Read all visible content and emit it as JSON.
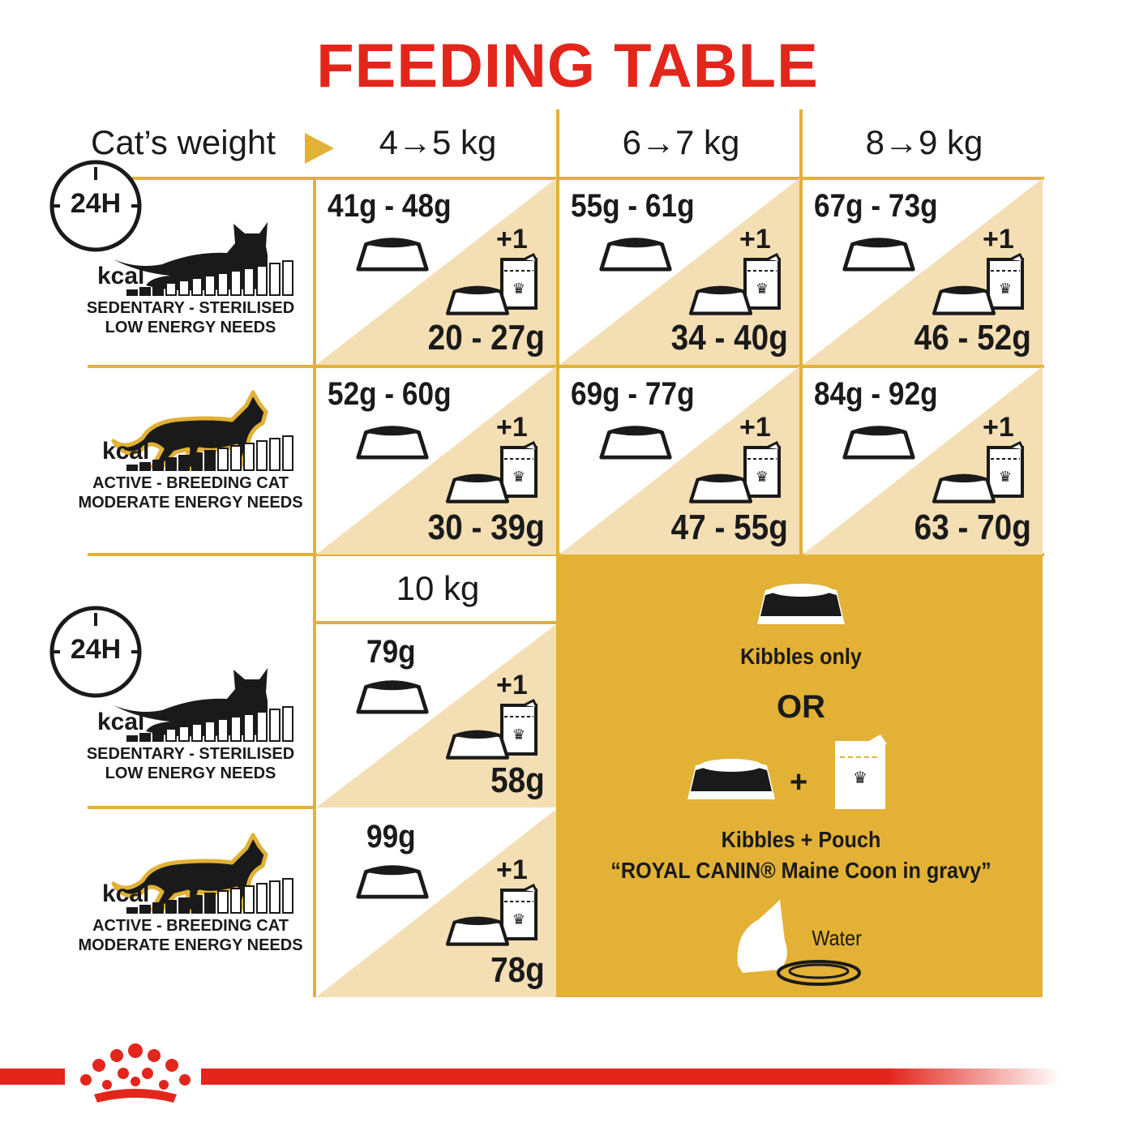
{
  "title": "FEEDING TABLE",
  "header": {
    "label": "Cat’s weight",
    "arrow_icon": "triangle-right-icon",
    "weights": [
      "4→5 kg",
      "6→7 kg",
      "8→9 kg"
    ],
    "weight_10": "10 kg"
  },
  "profiles": {
    "sedentary": {
      "clock": "24H",
      "kcal": "kcal",
      "line1": "SEDENTARY - STERILISED",
      "line2": "LOW ENERGY NEEDS",
      "kcal_level_fraction": 0.25
    },
    "active": {
      "kcal": "kcal",
      "line1": "ACTIVE - BREEDING CAT",
      "line2": "MODERATE ENERGY NEEDS",
      "kcal_level_fraction": 0.55
    }
  },
  "rows": [
    {
      "profile": "sedentary",
      "cells": [
        {
          "kibbles": "41g - 48g",
          "plus": "+1",
          "mixed": "20 - 27g"
        },
        {
          "kibbles": "55g - 61g",
          "plus": "+1",
          "mixed": "34 - 40g"
        },
        {
          "kibbles": "67g - 73g",
          "plus": "+1",
          "mixed": "46 - 52g"
        }
      ]
    },
    {
      "profile": "active",
      "cells": [
        {
          "kibbles": "52g - 60g",
          "plus": "+1",
          "mixed": "30 - 39g"
        },
        {
          "kibbles": "69g - 77g",
          "plus": "+1",
          "mixed": "47 - 55g"
        },
        {
          "kibbles": "84g - 92g",
          "plus": "+1",
          "mixed": "63 - 70g"
        }
      ]
    },
    {
      "profile": "sedentary",
      "cells": [
        {
          "kibbles": "79g",
          "plus": "+1",
          "mixed": "58g"
        }
      ]
    },
    {
      "profile": "active",
      "cells": [
        {
          "kibbles": "99g",
          "plus": "+1",
          "mixed": "78g"
        }
      ]
    }
  ],
  "legend": {
    "kibbles_only": "Kibbles only",
    "or": "OR",
    "plus_sign": "+",
    "kibbles_pouch": "Kibbles + Pouch",
    "product": "“ROYAL CANIN® Maine Coon in gravy”",
    "water": "Water"
  },
  "colors": {
    "title_red": "#e2261c",
    "gold": "#e2b135",
    "beige": "#f4deb3",
    "text": "#1a1a1a"
  },
  "brand": {
    "logo": "Royal Canin crown"
  }
}
